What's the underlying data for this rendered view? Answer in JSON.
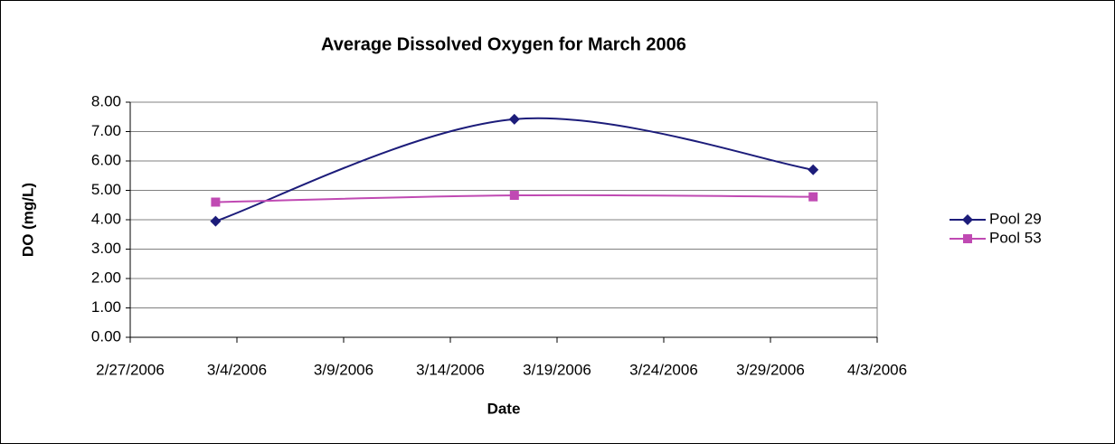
{
  "chart_data": {
    "type": "line",
    "title": "Average Dissolved Oxygen for March 2006",
    "x_label": "Date",
    "y_label": "DO (mg/L)",
    "x": [
      "2006-03-03",
      "2006-03-17",
      "2006-03-31"
    ],
    "series": [
      {
        "name": "Pool 29",
        "color": "#1c1c7a",
        "marker": "diamond",
        "values": [
          3.95,
          7.42,
          5.7
        ]
      },
      {
        "name": "Pool 53",
        "color": "#c04ab3",
        "marker": "square",
        "values": [
          4.6,
          4.83,
          4.78
        ]
      }
    ],
    "xlim": [
      "2006-02-27",
      "2006-04-03"
    ],
    "xticks": [
      {
        "value": "2006-02-27",
        "label": "2/27/2006"
      },
      {
        "value": "2006-03-04",
        "label": "3/4/2006"
      },
      {
        "value": "2006-03-09",
        "label": "3/9/2006"
      },
      {
        "value": "2006-03-14",
        "label": "3/14/2006"
      },
      {
        "value": "2006-03-19",
        "label": "3/19/2006"
      },
      {
        "value": "2006-03-24",
        "label": "3/24/2006"
      },
      {
        "value": "2006-03-29",
        "label": "3/29/2006"
      },
      {
        "value": "2006-04-03",
        "label": "4/3/2006"
      }
    ],
    "ylim": [
      0,
      8
    ],
    "yticks": [
      {
        "value": 0,
        "label": "0.00"
      },
      {
        "value": 1,
        "label": "1.00"
      },
      {
        "value": 2,
        "label": "2.00"
      },
      {
        "value": 3,
        "label": "3.00"
      },
      {
        "value": 4,
        "label": "4.00"
      },
      {
        "value": 5,
        "label": "5.00"
      },
      {
        "value": 6,
        "label": "6.00"
      },
      {
        "value": 7,
        "label": "7.00"
      },
      {
        "value": 8,
        "label": "8.00"
      }
    ],
    "grid": true,
    "smooth": true,
    "legend": "right"
  }
}
